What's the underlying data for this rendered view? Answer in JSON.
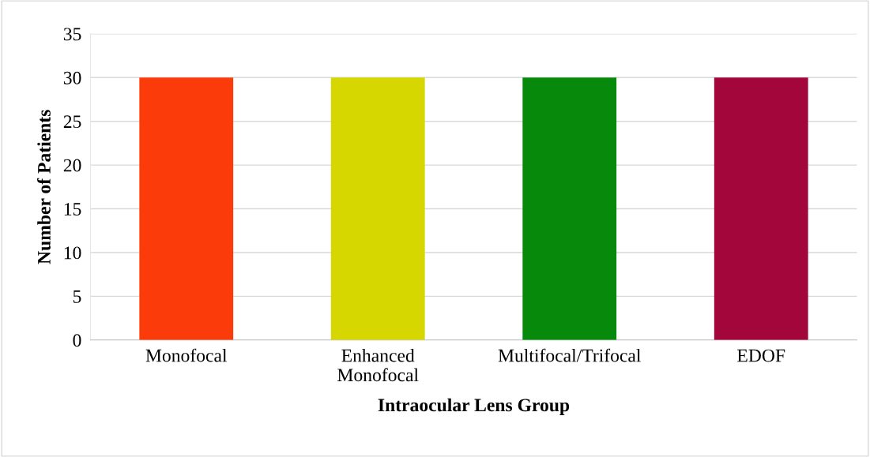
{
  "chart_data": {
    "type": "bar",
    "xlabel": "Intraocular Lens Group",
    "ylabel": "Number of Patients",
    "categories": [
      "Monofocal",
      "Enhanced\nMonofocal",
      "Multifocal/Trifocal",
      "EDOF"
    ],
    "values": [
      30,
      30,
      30,
      30
    ],
    "colors": [
      "#fb3c0a",
      "#d6d600",
      "#078a0b",
      "#a2063a"
    ],
    "ylim": [
      0,
      35
    ],
    "yticks": [
      0,
      5,
      10,
      15,
      20,
      25,
      30,
      35
    ],
    "grid": "y",
    "legend": false
  }
}
